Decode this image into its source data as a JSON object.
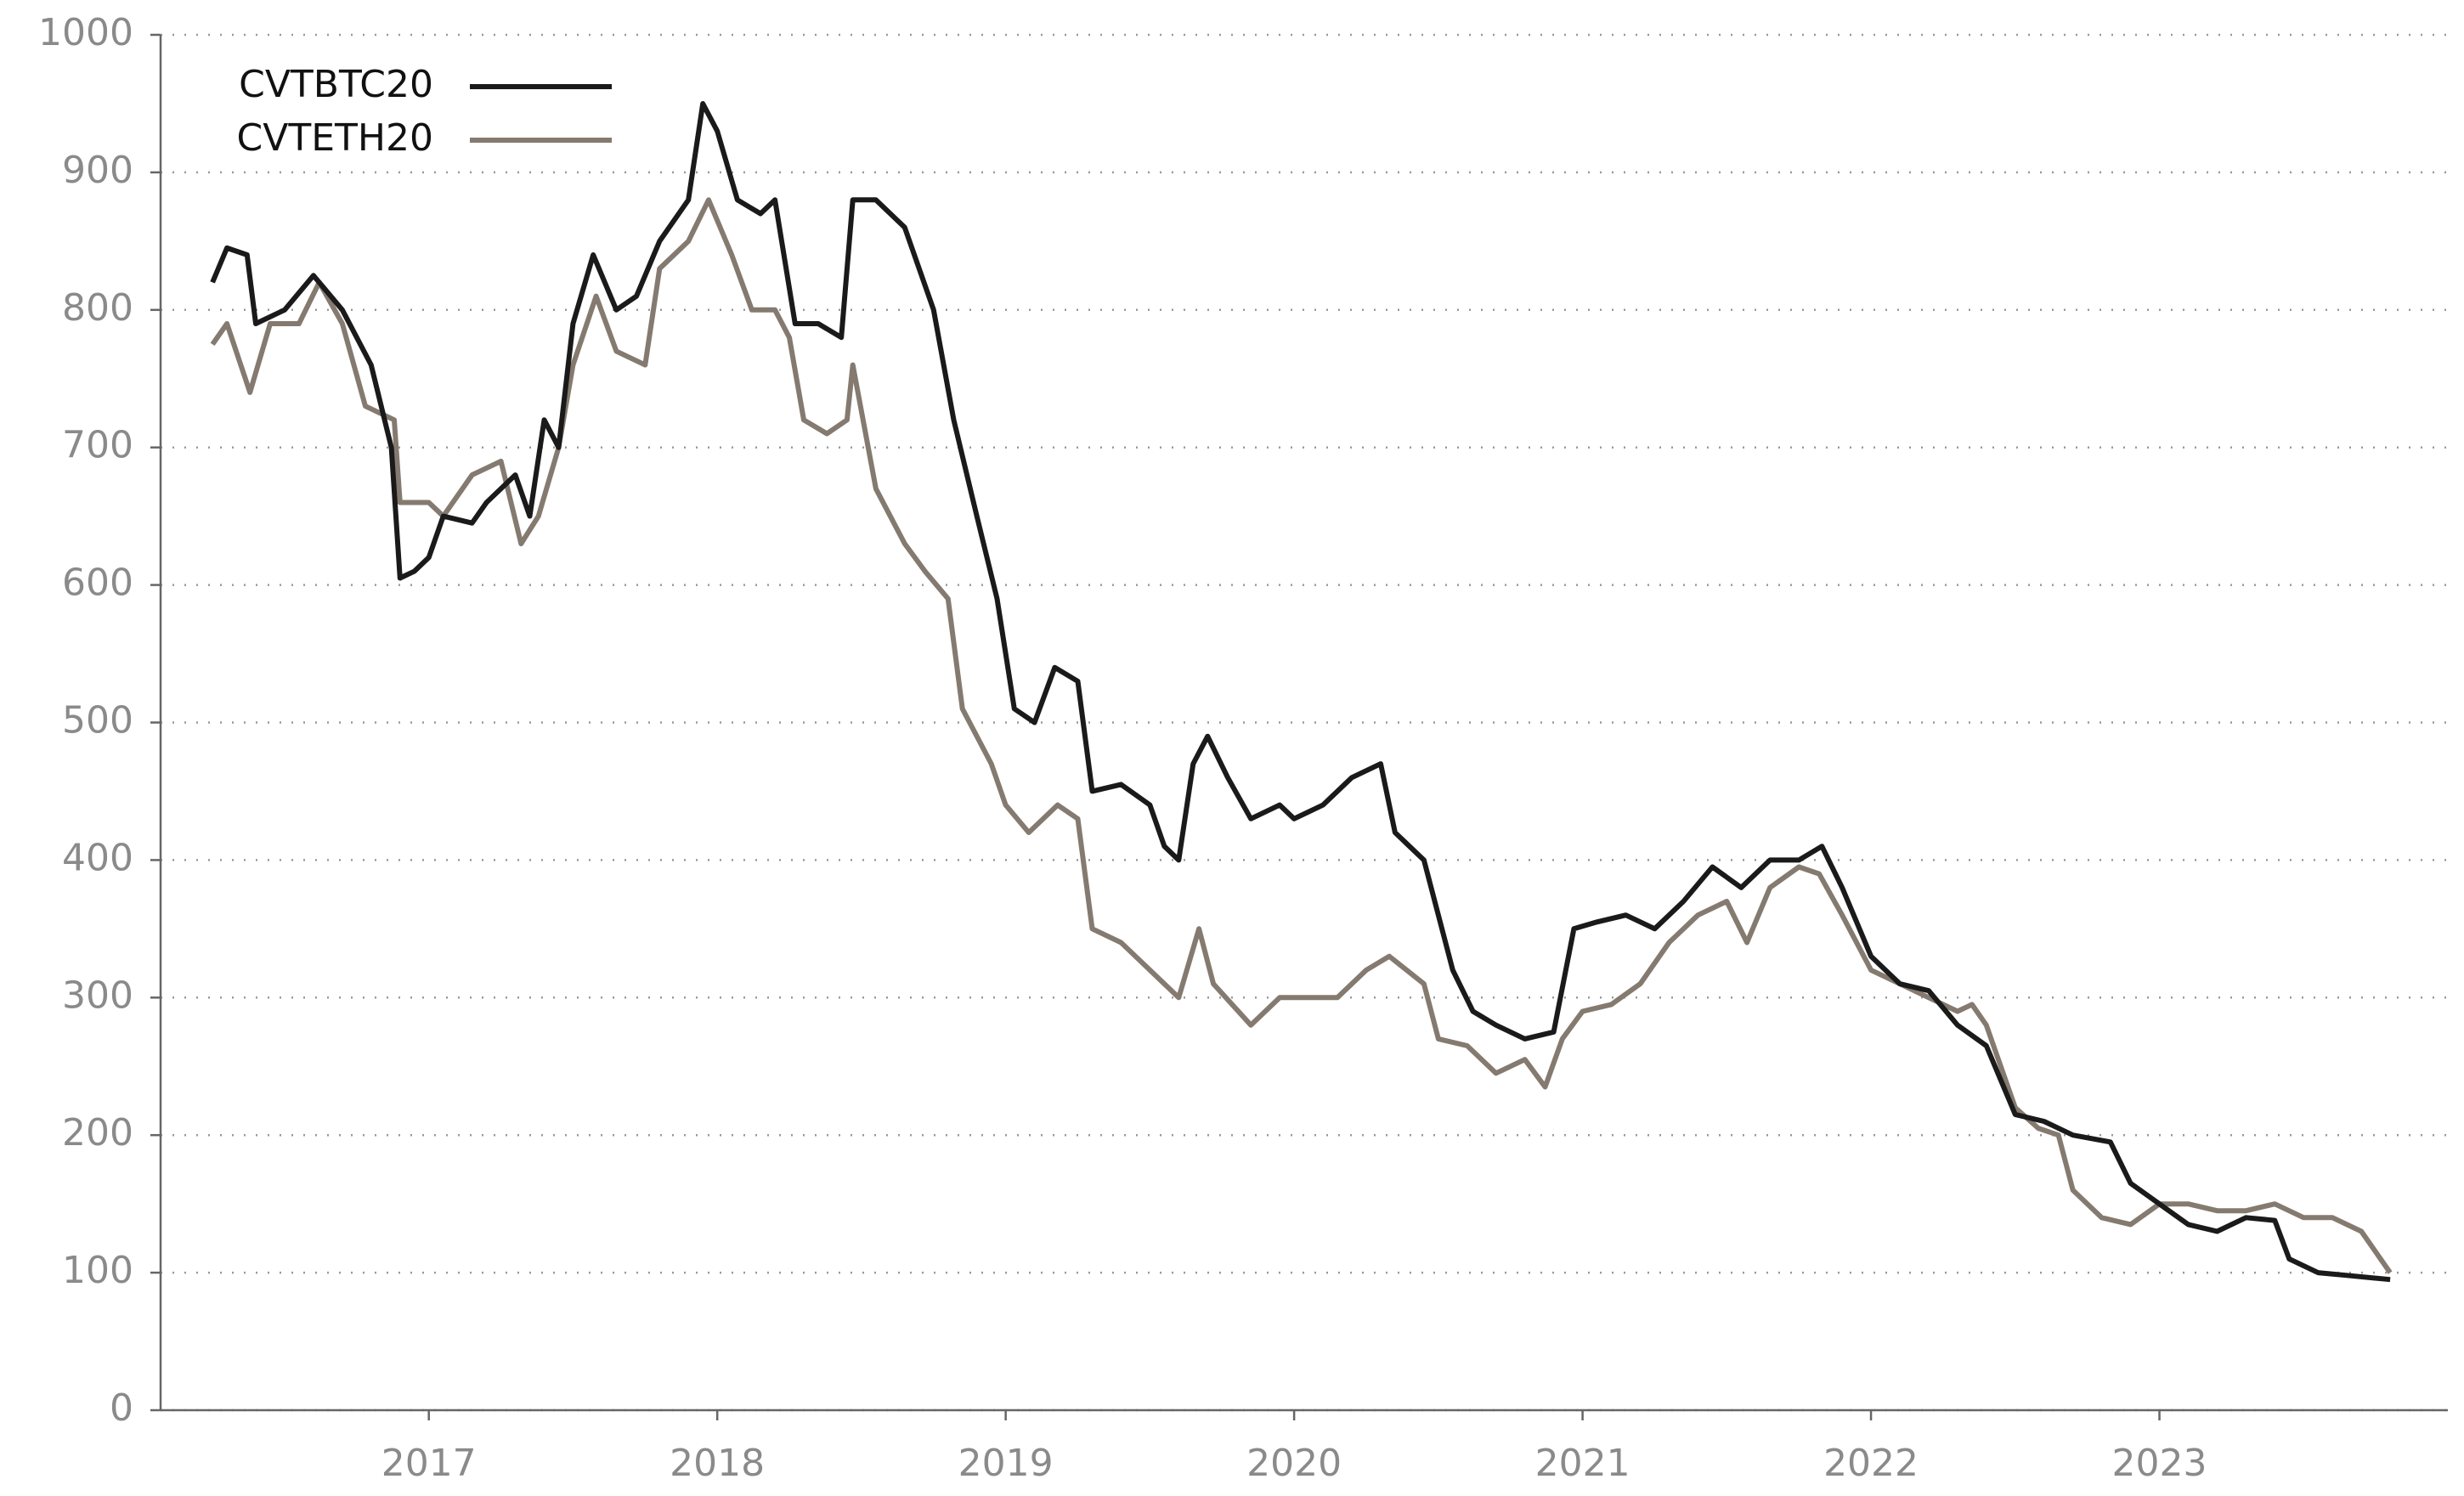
{
  "chart_data": {
    "type": "line",
    "xlim": [
      2016.07,
      2024.0
    ],
    "xticks": [
      2017,
      2018,
      2019,
      2020,
      2021,
      2022,
      2023
    ],
    "ylim": [
      0,
      1000
    ],
    "yticks": [
      0,
      100,
      200,
      300,
      400,
      500,
      600,
      700,
      800,
      900,
      1000
    ],
    "grid": true,
    "legend": "upper left",
    "series": [
      {
        "name": "CVTBTC20",
        "color": "#1a1a1a",
        "x": [
          2016.25,
          2016.3,
          2016.37,
          2016.4,
          2016.5,
          2016.6,
          2016.7,
          2016.8,
          2016.87,
          2016.9,
          2016.95,
          2017.0,
          2017.05,
          2017.15,
          2017.2,
          2017.3,
          2017.35,
          2017.4,
          2017.45,
          2017.5,
          2017.57,
          2017.65,
          2017.72,
          2017.8,
          2017.9,
          2017.95,
          2018.0,
          2018.07,
          2018.15,
          2018.2,
          2018.27,
          2018.35,
          2018.43,
          2018.47,
          2018.55,
          2018.65,
          2018.75,
          2018.82,
          2018.9,
          2018.97,
          2019.03,
          2019.1,
          2019.17,
          2019.25,
          2019.3,
          2019.4,
          2019.5,
          2019.55,
          2019.6,
          2019.65,
          2019.7,
          2019.77,
          2019.85,
          2019.95,
          2020.0,
          2020.1,
          2020.2,
          2020.3,
          2020.35,
          2020.45,
          2020.55,
          2020.62,
          2020.7,
          2020.8,
          2020.9,
          2020.97,
          2021.05,
          2021.15,
          2021.25,
          2021.35,
          2021.45,
          2021.55,
          2021.65,
          2021.75,
          2021.83,
          2021.9,
          2022.0,
          2022.1,
          2022.2,
          2022.3,
          2022.4,
          2022.5,
          2022.6,
          2022.7,
          2022.83,
          2022.9,
          2023.0,
          2023.1,
          2023.2,
          2023.3,
          2023.4,
          2023.45,
          2023.55,
          2023.65,
          2023.8
        ],
        "values": [
          820,
          845,
          840,
          790,
          800,
          825,
          800,
          760,
          700,
          605,
          610,
          620,
          650,
          645,
          660,
          680,
          650,
          720,
          700,
          790,
          840,
          800,
          810,
          850,
          880,
          950,
          930,
          880,
          870,
          880,
          790,
          790,
          780,
          880,
          880,
          860,
          800,
          720,
          650,
          590,
          510,
          500,
          540,
          530,
          450,
          455,
          440,
          410,
          400,
          470,
          490,
          460,
          430,
          440,
          430,
          440,
          460,
          470,
          420,
          400,
          320,
          290,
          280,
          270,
          275,
          350,
          355,
          360,
          350,
          370,
          395,
          380,
          400,
          400,
          410,
          380,
          330,
          310,
          305,
          280,
          265,
          215,
          210,
          200,
          195,
          165,
          150,
          135,
          130,
          140,
          138,
          110,
          100,
          98,
          95
        ]
      },
      {
        "name": "CVTETH20",
        "color": "#857a70",
        "x": [
          2016.25,
          2016.3,
          2016.38,
          2016.45,
          2016.55,
          2016.62,
          2016.7,
          2016.78,
          2016.88,
          2016.9,
          2017.0,
          2017.05,
          2017.15,
          2017.25,
          2017.32,
          2017.38,
          2017.45,
          2017.5,
          2017.58,
          2017.65,
          2017.75,
          2017.8,
          2017.9,
          2017.97,
          2018.05,
          2018.12,
          2018.2,
          2018.25,
          2018.3,
          2018.38,
          2018.45,
          2018.47,
          2018.55,
          2018.65,
          2018.72,
          2018.8,
          2018.85,
          2018.95,
          2019.0,
          2019.08,
          2019.18,
          2019.25,
          2019.3,
          2019.4,
          2019.5,
          2019.6,
          2019.67,
          2019.72,
          2019.85,
          2019.95,
          2020.05,
          2020.15,
          2020.25,
          2020.33,
          2020.45,
          2020.5,
          2020.6,
          2020.7,
          2020.8,
          2020.87,
          2020.93,
          2021.0,
          2021.1,
          2021.2,
          2021.3,
          2021.4,
          2021.5,
          2021.57,
          2021.65,
          2021.75,
          2021.82,
          2021.9,
          2022.0,
          2022.1,
          2022.2,
          2022.3,
          2022.35,
          2022.4,
          2022.5,
          2022.58,
          2022.65,
          2022.7,
          2022.8,
          2022.9,
          2023.0,
          2023.1,
          2023.2,
          2023.3,
          2023.4,
          2023.5,
          2023.6,
          2023.7,
          2023.8
        ],
        "values": [
          775,
          790,
          740,
          790,
          790,
          820,
          790,
          730,
          720,
          660,
          660,
          650,
          680,
          690,
          630,
          650,
          700,
          760,
          810,
          770,
          760,
          830,
          850,
          880,
          840,
          800,
          800,
          780,
          720,
          710,
          720,
          760,
          670,
          630,
          610,
          590,
          510,
          470,
          440,
          420,
          440,
          430,
          350,
          340,
          320,
          300,
          350,
          310,
          280,
          300,
          300,
          300,
          320,
          330,
          310,
          270,
          265,
          245,
          255,
          235,
          270,
          290,
          295,
          310,
          340,
          360,
          370,
          340,
          380,
          395,
          390,
          360,
          320,
          310,
          300,
          290,
          295,
          280,
          220,
          205,
          200,
          160,
          140,
          135,
          150,
          150,
          145,
          145,
          150,
          140,
          140,
          130,
          100
        ]
      }
    ]
  }
}
